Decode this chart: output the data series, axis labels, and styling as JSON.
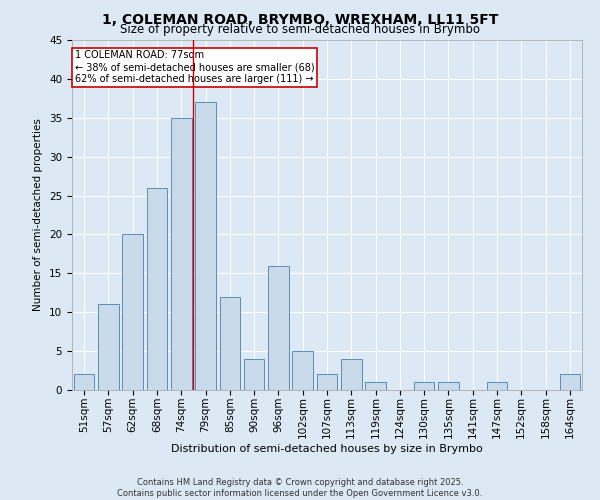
{
  "title": "1, COLEMAN ROAD, BRYMBO, WREXHAM, LL11 5FT",
  "subtitle": "Size of property relative to semi-detached houses in Brymbo",
  "xlabel": "Distribution of semi-detached houses by size in Brymbo",
  "ylabel": "Number of semi-detached properties",
  "categories": [
    "51sqm",
    "57sqm",
    "62sqm",
    "68sqm",
    "74sqm",
    "79sqm",
    "85sqm",
    "90sqm",
    "96sqm",
    "102sqm",
    "107sqm",
    "113sqm",
    "119sqm",
    "124sqm",
    "130sqm",
    "135sqm",
    "141sqm",
    "147sqm",
    "152sqm",
    "158sqm",
    "164sqm"
  ],
  "values": [
    2,
    11,
    20,
    26,
    35,
    37,
    12,
    4,
    16,
    5,
    2,
    4,
    1,
    0,
    1,
    1,
    0,
    1,
    0,
    0,
    2
  ],
  "bar_color": "#c9daea",
  "bar_edge_color": "#5b8db8",
  "background_color": "#dce9f5",
  "grid_color": "#ffffff",
  "property_label": "1 COLEMAN ROAD: 77sqm",
  "pct_smaller": 38,
  "pct_larger": 62,
  "n_smaller": 68,
  "n_larger": 111,
  "vline_x_index": 4.5,
  "annotation_box_color": "#ffffff",
  "annotation_box_edge": "#cc0000",
  "vline_color": "#cc0000",
  "ylim": [
    0,
    45
  ],
  "yticks": [
    0,
    5,
    10,
    15,
    20,
    25,
    30,
    35,
    40,
    45
  ],
  "footer": "Contains HM Land Registry data © Crown copyright and database right 2025.\nContains public sector information licensed under the Open Government Licence v3.0."
}
